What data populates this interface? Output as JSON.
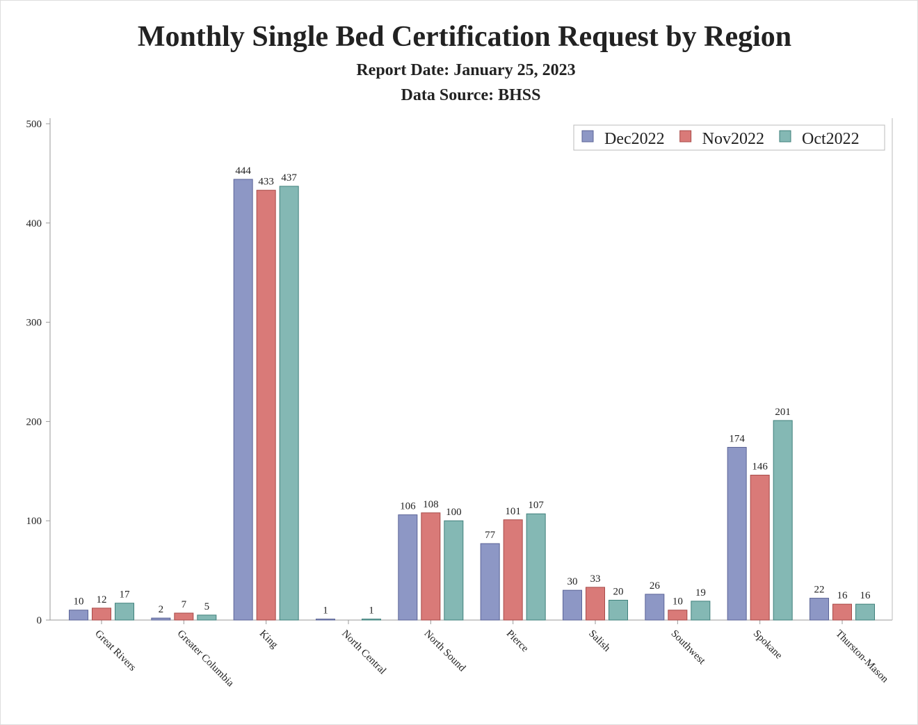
{
  "chart_data": {
    "type": "bar",
    "title": "Monthly Single Bed Certification Request by Region",
    "subtitle": [
      "Report Date: January 25, 2023",
      "Data Source: BHSS"
    ],
    "categories": [
      "Great Rivers",
      "Greater Columbia",
      "King",
      "North Central",
      "North Sound",
      "Pierce",
      "Salish",
      "Southwest",
      "Spokane",
      "Thurston-Mason"
    ],
    "series": [
      {
        "name": "Dec2022",
        "color": "#8d97c5",
        "values": [
          10,
          2,
          444,
          1,
          106,
          77,
          30,
          26,
          174,
          22
        ]
      },
      {
        "name": "Nov2022",
        "color": "#d97a78",
        "values": [
          12,
          7,
          433,
          null,
          108,
          101,
          33,
          10,
          146,
          16
        ]
      },
      {
        "name": "Oct2022",
        "color": "#84b8b4",
        "values": [
          17,
          5,
          437,
          1,
          100,
          107,
          20,
          19,
          201,
          16
        ]
      }
    ],
    "ylim": [
      0,
      500
    ],
    "yticks": [
      0,
      100,
      200,
      300,
      400,
      500
    ],
    "grid": false,
    "legend": "top-right"
  }
}
